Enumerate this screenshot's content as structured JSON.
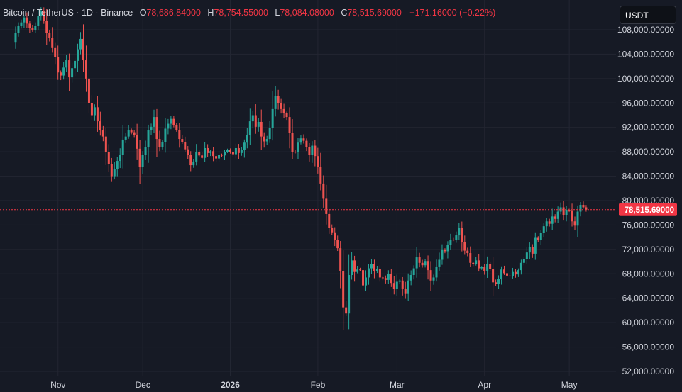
{
  "chart_data": {
    "type": "candlestick",
    "symbol": "Bitcoin / TetherUS",
    "interval": "1D",
    "exchange": "Binance",
    "quote_unit": "USDT",
    "ohlc_legend": {
      "open_label": "O",
      "open": "78,686.84000",
      "high_label": "H",
      "high": "78,754.55000",
      "low_label": "L",
      "low": "78,084.08000",
      "close_label": "C",
      "close": "78,515.69000",
      "change": "−171.16000 (−0.22%)"
    },
    "last_price": 78515.69,
    "last_price_label": "78,515.69000",
    "y_ticks": [
      "108,000.00000",
      "104,000.00000",
      "100,000.00000",
      "96,000.00000",
      "92,000.00000",
      "88,000.00000",
      "84,000.00000",
      "80,000.00000",
      "76,000.00000",
      "72,000.00000",
      "68,000.00000",
      "64,000.00000",
      "60,000.00000",
      "56,000.00000",
      "52,000.00000"
    ],
    "y_tick_values": [
      108000,
      104000,
      100000,
      96000,
      92000,
      88000,
      84000,
      80000,
      76000,
      72000,
      68000,
      64000,
      60000,
      56000,
      52000
    ],
    "x_ticks": [
      {
        "label": "Nov",
        "date": "2025-11-01"
      },
      {
        "label": "Dec",
        "date": "2025-12-01"
      },
      {
        "label": "2026",
        "date": "2026-01-01"
      },
      {
        "label": "Feb",
        "date": "2026-02-01"
      },
      {
        "label": "Mar",
        "date": "2026-03-01"
      },
      {
        "label": "Apr",
        "date": "2026-04-01"
      },
      {
        "label": "May",
        "date": "2026-05-01"
      }
    ],
    "start_date": "2025-10-20",
    "grid": true,
    "colors": {
      "up": "#26a69a",
      "down": "#ef5350",
      "grid": "#232632",
      "axis_text": "#d1d4dc",
      "price_line": "#f23645",
      "background": "#161a25"
    },
    "closes": [
      106000,
      107500,
      108700,
      109200,
      110000,
      109000,
      108300,
      107900,
      108600,
      110200,
      111000,
      109500,
      107500,
      106700,
      105000,
      103500,
      101000,
      100500,
      101800,
      103000,
      100200,
      101700,
      102900,
      104800,
      106500,
      103000,
      100000,
      96000,
      94000,
      95300,
      93000,
      91500,
      90500,
      88000,
      86000,
      84000,
      85200,
      86500,
      87500,
      90000,
      90500,
      91500,
      91200,
      90800,
      88500,
      85500,
      87500,
      88800,
      91500,
      92100,
      93700,
      90100,
      88800,
      89600,
      91800,
      92600,
      93400,
      92400,
      91600,
      90100,
      89600,
      88400,
      87500,
      85800,
      86400,
      87900,
      87400,
      87000,
      88600,
      87800,
      88100,
      87300,
      86900,
      87500,
      87400,
      88000,
      88300,
      88000,
      87600,
      88600,
      87800,
      88300,
      89500,
      90800,
      93000,
      94000,
      92100,
      92900,
      90500,
      89700,
      90100,
      91900,
      95000,
      97100,
      96000,
      95000,
      94300,
      93700,
      91100,
      88000,
      87900,
      89500,
      90200,
      89800,
      88800,
      87500,
      89000,
      87300,
      85500,
      82800,
      80300,
      77800,
      75500,
      74800,
      73500,
      72200,
      68500,
      62500,
      61500,
      67800,
      70200,
      68300,
      68700,
      68600,
      66100,
      67400,
      68900,
      69600,
      68500,
      68800,
      67400,
      67300,
      67000,
      68000,
      66500,
      65500,
      66700,
      66900,
      65600,
      64700,
      66900,
      67800,
      68900,
      70700,
      69800,
      69400,
      70100,
      68600,
      66900,
      67400,
      69200,
      70300,
      72000,
      71700,
      72700,
      73600,
      73500,
      74300,
      75500,
      73200,
      71800,
      71400,
      69800,
      69600,
      70200,
      68900,
      69100,
      68500,
      69600,
      68800,
      66600,
      66400,
      67100,
      68700,
      68100,
      67700,
      67600,
      68300,
      67900,
      68600,
      69800,
      70400,
      71500,
      72400,
      71300,
      73900,
      73500,
      74700,
      75800,
      76600,
      76200,
      77400,
      77000,
      78200,
      78900,
      77600,
      78500,
      78400,
      76600,
      75900,
      78200,
      79300,
      78900,
      78516
    ]
  }
}
